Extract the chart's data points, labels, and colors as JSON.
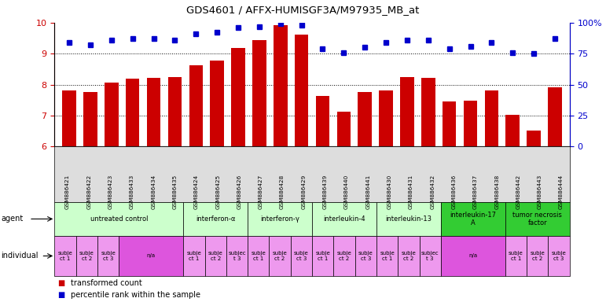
{
  "title": "GDS4601 / AFFX-HUMISGF3A/M97935_MB_at",
  "sample_ids": [
    "GSM886421",
    "GSM886422",
    "GSM886423",
    "GSM886433",
    "GSM886434",
    "GSM886435",
    "GSM886424",
    "GSM886425",
    "GSM886426",
    "GSM886427",
    "GSM886428",
    "GSM886429",
    "GSM886439",
    "GSM886440",
    "GSM886441",
    "GSM886430",
    "GSM886431",
    "GSM886432",
    "GSM886436",
    "GSM886437",
    "GSM886438",
    "GSM886442",
    "GSM886443",
    "GSM886444"
  ],
  "bar_values": [
    7.82,
    7.75,
    8.06,
    8.18,
    8.22,
    8.23,
    8.62,
    8.78,
    9.18,
    9.43,
    9.92,
    9.62,
    7.62,
    7.12,
    7.75,
    7.8,
    8.25,
    8.22,
    7.45,
    7.47,
    7.82,
    7.02,
    6.52,
    7.92
  ],
  "dot_values": [
    84,
    82,
    86,
    87,
    87,
    86,
    91,
    92,
    96,
    97,
    99,
    98,
    79,
    76,
    80,
    84,
    86,
    86,
    79,
    81,
    84,
    76,
    75,
    87
  ],
  "ylim_left": [
    6,
    10
  ],
  "ylim_right": [
    0,
    100
  ],
  "yticks_left": [
    6,
    7,
    8,
    9,
    10
  ],
  "yticks_right": [
    0,
    25,
    50,
    75,
    100
  ],
  "ytick_labels_right": [
    "0",
    "25",
    "50",
    "75",
    "100%"
  ],
  "bar_color": "#CC0000",
  "dot_color": "#0000CC",
  "agent_groups": [
    {
      "label": "untreated control",
      "start": 0,
      "end": 5,
      "color": "#CCFFCC"
    },
    {
      "label": "interferon-α",
      "start": 6,
      "end": 8,
      "color": "#CCFFCC"
    },
    {
      "label": "interferon-γ",
      "start": 9,
      "end": 11,
      "color": "#CCFFCC"
    },
    {
      "label": "interleukin-4",
      "start": 12,
      "end": 14,
      "color": "#CCFFCC"
    },
    {
      "label": "interleukin-13",
      "start": 15,
      "end": 17,
      "color": "#CCFFCC"
    },
    {
      "label": "interleukin-17\nA",
      "start": 18,
      "end": 20,
      "color": "#33CC33"
    },
    {
      "label": "tumor necrosis\nfactor",
      "start": 21,
      "end": 23,
      "color": "#33CC33"
    }
  ],
  "individual_groups": [
    {
      "label": "subje\nct 1",
      "start": 0,
      "end": 0,
      "color": "#EE99EE"
    },
    {
      "label": "subje\nct 2",
      "start": 1,
      "end": 1,
      "color": "#EE99EE"
    },
    {
      "label": "subje\nct 3",
      "start": 2,
      "end": 2,
      "color": "#EE99EE"
    },
    {
      "label": "n/a",
      "start": 3,
      "end": 5,
      "color": "#DD55DD"
    },
    {
      "label": "subje\nct 1",
      "start": 6,
      "end": 6,
      "color": "#EE99EE"
    },
    {
      "label": "subje\nct 2",
      "start": 7,
      "end": 7,
      "color": "#EE99EE"
    },
    {
      "label": "subjec\nt 3",
      "start": 8,
      "end": 8,
      "color": "#EE99EE"
    },
    {
      "label": "subje\nct 1",
      "start": 9,
      "end": 9,
      "color": "#EE99EE"
    },
    {
      "label": "subje\nct 2",
      "start": 10,
      "end": 10,
      "color": "#EE99EE"
    },
    {
      "label": "subje\nct 3",
      "start": 11,
      "end": 11,
      "color": "#EE99EE"
    },
    {
      "label": "subje\nct 1",
      "start": 12,
      "end": 12,
      "color": "#EE99EE"
    },
    {
      "label": "subje\nct 2",
      "start": 13,
      "end": 13,
      "color": "#EE99EE"
    },
    {
      "label": "subje\nct 3",
      "start": 14,
      "end": 14,
      "color": "#EE99EE"
    },
    {
      "label": "subje\nct 1",
      "start": 15,
      "end": 15,
      "color": "#EE99EE"
    },
    {
      "label": "subje\nct 2",
      "start": 16,
      "end": 16,
      "color": "#EE99EE"
    },
    {
      "label": "subjec\nt 3",
      "start": 17,
      "end": 17,
      "color": "#EE99EE"
    },
    {
      "label": "n/a",
      "start": 18,
      "end": 20,
      "color": "#DD55DD"
    },
    {
      "label": "subje\nct 1",
      "start": 21,
      "end": 21,
      "color": "#EE99EE"
    },
    {
      "label": "subje\nct 2",
      "start": 22,
      "end": 22,
      "color": "#EE99EE"
    },
    {
      "label": "subje\nct 3",
      "start": 23,
      "end": 23,
      "color": "#EE99EE"
    }
  ]
}
